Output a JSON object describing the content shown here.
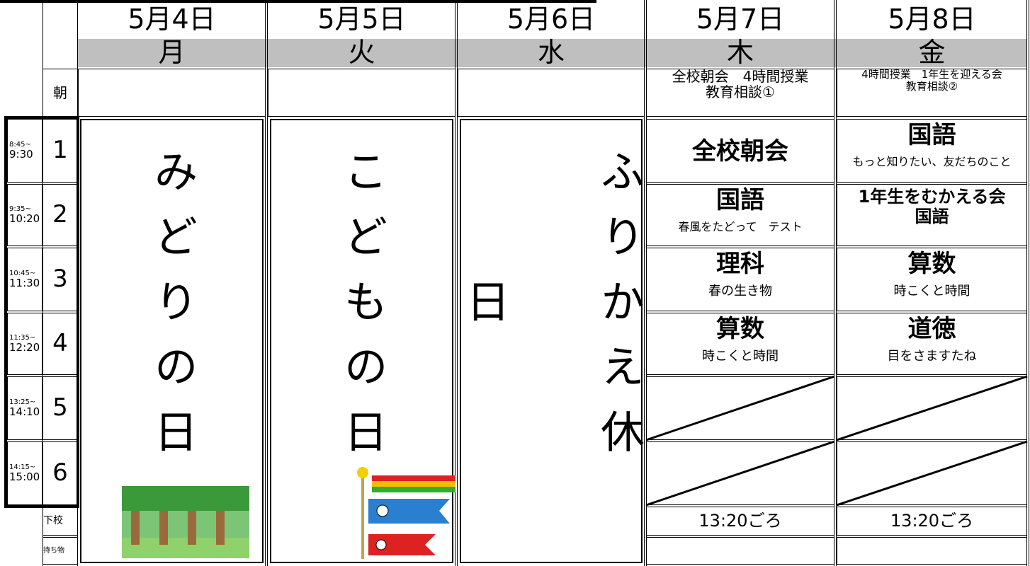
{
  "days": [
    {
      "date": "5月4日",
      "weekday": "月"
    },
    {
      "date": "5月5日",
      "weekday": "火"
    },
    {
      "date": "5月6日",
      "weekday": "水"
    },
    {
      "date": "5月7日",
      "weekday": "木"
    },
    {
      "date": "5月8日",
      "weekday": "金"
    }
  ],
  "row_labels": {
    "morning": "朝",
    "dismissal": "下校",
    "belongings": "持ち物"
  },
  "periods": [
    {
      "start": "8:45~",
      "end": "9:30",
      "number": "1"
    },
    {
      "start": "9:35~",
      "end": "10:20",
      "number": "2"
    },
    {
      "start": "10:45~",
      "end": "11:30",
      "number": "3"
    },
    {
      "start": "11:35~",
      "end": "12:20",
      "number": "4"
    },
    {
      "start": "13:25~",
      "end": "14:10",
      "number": "5"
    },
    {
      "start": "14:15~",
      "end": "15:00",
      "number": "6"
    }
  ],
  "holidays": [
    "みどりの日",
    "こどもの日",
    "ふりかえ休日"
  ],
  "school_days": [
    {
      "morning": [
        "全校朝会　4時間授業",
        "教育相談①"
      ],
      "lessons": [
        {
          "subject": "全校朝会"
        },
        {
          "subject": "国語",
          "note": "春風をたどって　テスト"
        },
        {
          "subject": "理科",
          "note": "春の生き物"
        },
        {
          "subject": "算数",
          "note": "時こくと時間"
        }
      ],
      "dismissal": "13:20ごろ"
    },
    {
      "morning": [
        "4時間授業　1年生を迎える会",
        "教育相談②"
      ],
      "lessons": [
        {
          "subject": "国語",
          "note": "もっと知りたい、友だちのこと"
        },
        {
          "subject": "1年生をむかえる会",
          "note": "国語"
        },
        {
          "subject": "算数",
          "note": "時こくと時間"
        },
        {
          "subject": "道徳",
          "note": "目をさますたね"
        }
      ],
      "dismissal": "13:20ごろ"
    }
  ]
}
